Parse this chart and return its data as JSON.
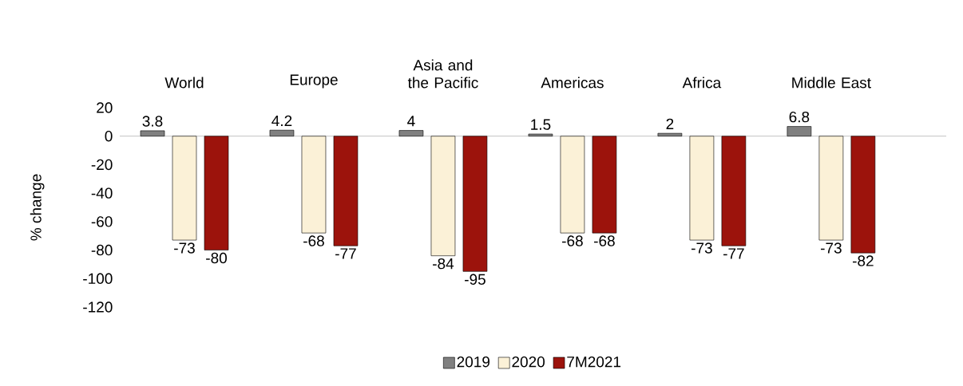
{
  "chart_data": {
    "type": "bar",
    "ylabel": "% change",
    "categories": [
      "World",
      "Europe",
      "Asia and the Pacific",
      "Americas",
      "Africa",
      "Middle East"
    ],
    "series": [
      {
        "name": "2019",
        "color": "#808080",
        "values": [
          3.8,
          4.2,
          4,
          1.5,
          2,
          6.8
        ]
      },
      {
        "name": "2020",
        "color": "#fbf1d7",
        "values": [
          -73,
          -68,
          -84,
          -68,
          -73,
          -73
        ]
      },
      {
        "name": "7M2021",
        "color": "#9c130c",
        "values": [
          -80,
          -77,
          -95,
          -68,
          -77,
          -82
        ]
      }
    ],
    "ylim": [
      -120,
      20
    ],
    "yticks": [
      -120,
      -100,
      -80,
      -60,
      -40,
      -20,
      0,
      20
    ],
    "data_labels": true,
    "legend": "bottom"
  }
}
